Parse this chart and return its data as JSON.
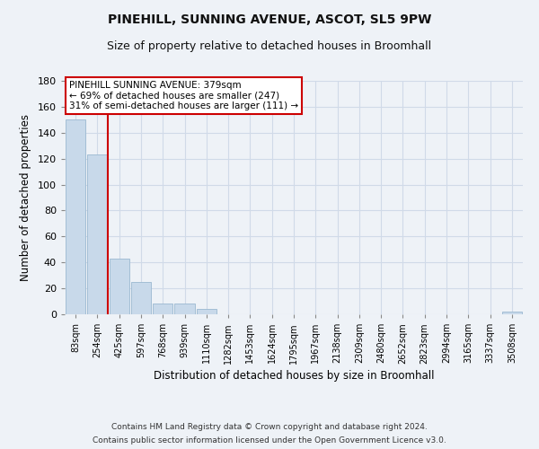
{
  "title": "PINEHILL, SUNNING AVENUE, ASCOT, SL5 9PW",
  "subtitle": "Size of property relative to detached houses in Broomhall",
  "xlabel": "Distribution of detached houses by size in Broomhall",
  "ylabel": "Number of detached properties",
  "bar_labels": [
    "83sqm",
    "254sqm",
    "425sqm",
    "597sqm",
    "768sqm",
    "939sqm",
    "1110sqm",
    "1282sqm",
    "1453sqm",
    "1624sqm",
    "1795sqm",
    "1967sqm",
    "2138sqm",
    "2309sqm",
    "2480sqm",
    "2652sqm",
    "2823sqm",
    "2994sqm",
    "3165sqm",
    "3337sqm",
    "3508sqm"
  ],
  "bar_values": [
    150,
    123,
    43,
    25,
    8,
    8,
    4,
    0,
    0,
    0,
    0,
    0,
    0,
    0,
    0,
    0,
    0,
    0,
    0,
    0,
    2
  ],
  "bar_color": "#c8d9ea",
  "bar_edgecolor": "#9ab8d0",
  "vline_color": "#cc0000",
  "ylim": [
    0,
    180
  ],
  "yticks": [
    0,
    20,
    40,
    60,
    80,
    100,
    120,
    140,
    160,
    180
  ],
  "annotation_title": "PINEHILL SUNNING AVENUE: 379sqm",
  "annotation_line1": "← 69% of detached houses are smaller (247)",
  "annotation_line2": "31% of semi-detached houses are larger (111) →",
  "annotation_box_color": "#ffffff",
  "annotation_border_color": "#cc0000",
  "footer1": "Contains HM Land Registry data © Crown copyright and database right 2024.",
  "footer2": "Contains public sector information licensed under the Open Government Licence v3.0.",
  "bg_color": "#eef2f7",
  "grid_color": "#d0dae8",
  "title_fontsize": 10,
  "subtitle_fontsize": 9
}
